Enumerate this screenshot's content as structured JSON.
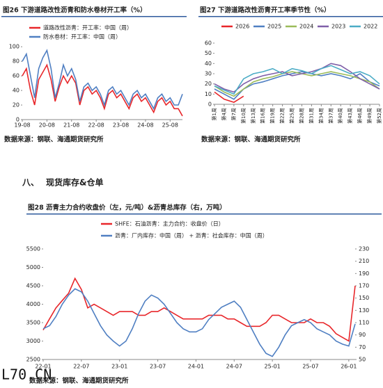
{
  "chart_data": [
    {
      "type": "line",
      "title": "图26  下游道路改性沥青和防水卷材开工率（%）",
      "source": "数据来源：钢联、海通期货研究所",
      "categories": [
        "19-08",
        null,
        null,
        null,
        null,
        null,
        "20-08",
        null,
        null,
        null,
        null,
        null,
        "21-08",
        null,
        null,
        null,
        null,
        null,
        "22-08",
        null,
        null,
        null,
        null,
        null,
        "23-08",
        null,
        null,
        null,
        null,
        null,
        "24-08",
        null,
        null,
        null,
        null,
        null,
        "25-08",
        null,
        null,
        null
      ],
      "series": [
        {
          "name": "道路改性沥青：开工率：中国（周）",
          "color": "#e8262a",
          "values": [
            60,
            70,
            40,
            20,
            55,
            65,
            75,
            55,
            25,
            45,
            60,
            50,
            60,
            50,
            20,
            40,
            45,
            35,
            40,
            30,
            15,
            35,
            40,
            30,
            35,
            25,
            15,
            30,
            35,
            25,
            30,
            20,
            10,
            25,
            30,
            20,
            25,
            15,
            15,
            5
          ]
        },
        {
          "name": "防水卷材：开工率：中国（周）",
          "color": "#4f7fc2",
          "values": [
            80,
            90,
            60,
            30,
            70,
            85,
            95,
            70,
            30,
            50,
            75,
            60,
            70,
            55,
            25,
            45,
            50,
            40,
            45,
            35,
            20,
            40,
            45,
            35,
            40,
            30,
            20,
            35,
            40,
            30,
            35,
            25,
            15,
            30,
            35,
            25,
            30,
            20,
            20,
            35
          ]
        }
      ],
      "ylim": [
        0,
        105
      ],
      "yticks": [
        0,
        20,
        40,
        60,
        80,
        100
      ]
    },
    {
      "type": "line",
      "title": "图27  下游道路改性沥青开工率季节性（%）",
      "source": "数据来源：钢联、海通期货研究所",
      "categories": [
        "第1周",
        "第4周",
        "第7周",
        "第10周",
        "第13周",
        "第16周",
        "第19周",
        "第22周",
        "第25周",
        "第28周",
        "第31周",
        "第34周",
        "第37周",
        "第40周",
        "第43周",
        "第46周",
        "第49周",
        "第52周"
      ],
      "series": [
        {
          "name": "2026",
          "color": "#e8262a",
          "values": [
            12,
            5,
            2,
            8,
            null,
            null,
            null,
            null,
            null,
            null,
            null,
            null,
            null,
            null,
            null,
            null,
            null,
            null
          ]
        },
        {
          "name": "2025",
          "color": "#4f7fc2",
          "values": [
            15,
            10,
            5,
            15,
            20,
            22,
            25,
            28,
            30,
            32,
            30,
            28,
            30,
            28,
            25,
            30,
            22,
            18
          ]
        },
        {
          "name": "2024",
          "color": "#9bbb59",
          "values": [
            18,
            12,
            8,
            15,
            22,
            25,
            27,
            30,
            32,
            30,
            28,
            30,
            32,
            30,
            28,
            25,
            22,
            15
          ]
        },
        {
          "name": "2023",
          "color": "#7f5fa8",
          "values": [
            20,
            15,
            12,
            20,
            25,
            28,
            30,
            32,
            28,
            30,
            32,
            35,
            40,
            38,
            32,
            25,
            20,
            15
          ]
        },
        {
          "name": "2022",
          "color": "#4bacc6",
          "values": [
            18,
            14,
            10,
            25,
            30,
            32,
            35,
            30,
            35,
            33,
            30,
            35,
            38,
            34,
            30,
            32,
            28,
            20
          ]
        }
      ],
      "ylim": [
        0,
        60
      ],
      "yticks": [
        0,
        10,
        20,
        30,
        40,
        50,
        60
      ]
    },
    {
      "type": "line",
      "title": "图28  沥青主力合约收盘价（左，元/吨）&沥青总库存（右，万吨）",
      "source": "数据来源：钢联、海通期货研究所",
      "categories": [
        "22-01",
        null,
        null,
        null,
        null,
        null,
        "22-07",
        null,
        null,
        null,
        null,
        null,
        "23-01",
        null,
        null,
        null,
        null,
        null,
        "23-07",
        null,
        null,
        null,
        null,
        null,
        "24-01",
        null,
        null,
        null,
        null,
        null,
        "24-07",
        null,
        null,
        null,
        null,
        null,
        "25-01",
        null,
        null,
        null,
        null,
        null,
        "25-07",
        null,
        null,
        null,
        null,
        null,
        "26-01",
        null
      ],
      "series": [
        {
          "name": "SHFE：石油沥青：主力合约：收盘价（日）",
          "color": "#e8262a",
          "values": [
            3300,
            3600,
            3900,
            4100,
            4300,
            4700,
            4400,
            3900,
            4000,
            3900,
            3800,
            3700,
            3800,
            3800,
            3800,
            3700,
            3700,
            3800,
            3800,
            3900,
            3800,
            3700,
            3600,
            3600,
            3600,
            3600,
            3700,
            3700,
            3700,
            3600,
            3600,
            3500,
            3400,
            3400,
            3400,
            3500,
            3700,
            3700,
            3600,
            3500,
            3500,
            3500,
            3600,
            3500,
            3500,
            3400,
            3200,
            3100,
            3000,
            4500
          ]
        },
        {
          "name": "沥青：厂内库存：中国（周） + 沥青：社会库存：中国（周）",
          "color": "#4f7fc2",
          "axis": "y2",
          "values": [
            100,
            105,
            120,
            140,
            155,
            165,
            160,
            145,
            125,
            105,
            90,
            80,
            72,
            80,
            100,
            125,
            145,
            155,
            150,
            140,
            125,
            110,
            100,
            95,
            95,
            100,
            115,
            125,
            135,
            140,
            145,
            135,
            115,
            95,
            75,
            60,
            55,
            70,
            90,
            105,
            110,
            115,
            110,
            100,
            95,
            90,
            80,
            75,
            72,
            108
          ]
        }
      ],
      "ylim": [
        2500,
        5500
      ],
      "yticks": [
        2500,
        3000,
        3500,
        4000,
        4500,
        5000,
        5500
      ],
      "y2lim": [
        50,
        230
      ],
      "y2ticks": [
        50,
        70,
        90,
        110,
        130,
        150,
        170,
        190,
        210,
        230
      ]
    }
  ],
  "section": {
    "number": "八、",
    "title": "现货库存&仓单"
  },
  "logo": "L70.CN"
}
